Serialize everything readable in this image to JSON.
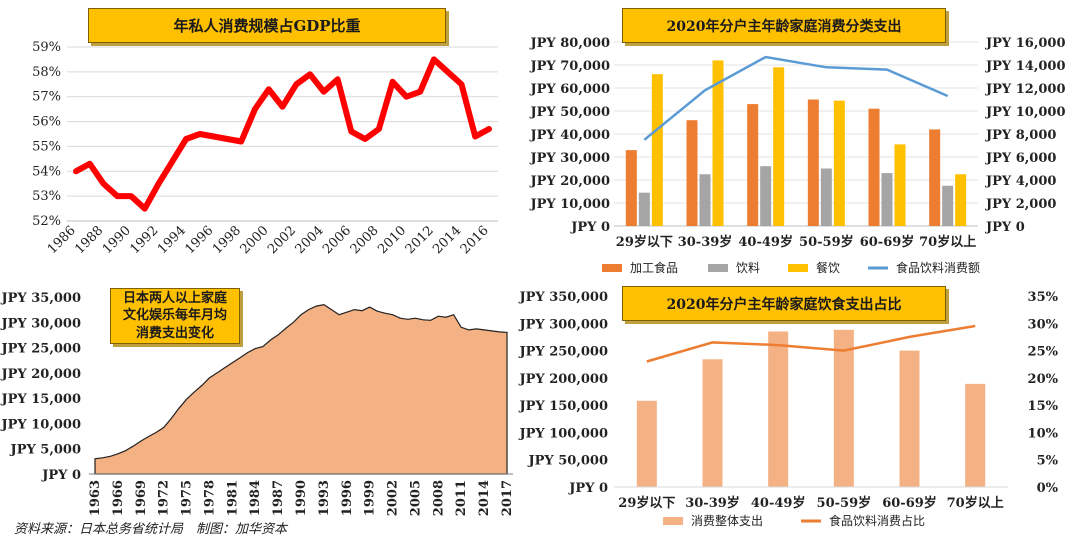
{
  "chart_data": [
    {
      "type": "line",
      "title": "年私人消费规模占GDP比重",
      "x": [
        1986,
        1987,
        1988,
        1989,
        1990,
        1991,
        1992,
        1993,
        1994,
        1995,
        1996,
        1997,
        1998,
        1999,
        2000,
        2001,
        2002,
        2003,
        2004,
        2005,
        2006,
        2007,
        2008,
        2009,
        2010,
        2011,
        2012,
        2013,
        2014,
        2015,
        2016
      ],
      "x_ticks": [
        "1986",
        "1988",
        "1990",
        "1992",
        "1994",
        "1996",
        "1998",
        "2000",
        "2002",
        "2004",
        "2006",
        "2008",
        "2010",
        "2012",
        "2014",
        "2016"
      ],
      "values": [
        54.0,
        54.3,
        53.5,
        53.0,
        53.0,
        52.5,
        53.5,
        54.4,
        55.3,
        55.5,
        55.4,
        55.3,
        55.2,
        56.5,
        57.3,
        56.6,
        57.5,
        57.9,
        57.2,
        57.7,
        55.6,
        55.3,
        55.7,
        57.6,
        57.0,
        57.2,
        58.5,
        58.0,
        57.5,
        55.4,
        55.7
      ],
      "ylim": [
        52,
        59
      ],
      "y_ticks": [
        "52%",
        "53%",
        "54%",
        "55%",
        "56%",
        "57%",
        "58%",
        "59%"
      ],
      "color": "#FF0000"
    },
    {
      "type": "bar",
      "title": "2020年分户主年龄家庭消费分类支出",
      "categories": [
        "29岁以下",
        "30-39岁",
        "40-49岁",
        "50-59岁",
        "60-69岁",
        "70岁以上"
      ],
      "series": [
        {
          "name": "加工食品",
          "values": [
            33000,
            46000,
            53000,
            55000,
            51000,
            42000
          ],
          "color": "#ED7D31",
          "axis": "left"
        },
        {
          "name": "饮料",
          "values": [
            14500,
            22500,
            26000,
            25000,
            23000,
            17500
          ],
          "color": "#A5A5A5",
          "axis": "left"
        },
        {
          "name": "餐饮",
          "values": [
            66000,
            72000,
            69000,
            54500,
            35500,
            22500
          ],
          "color": "#FFC000",
          "axis": "left"
        },
        {
          "name": "食品饮料消费额",
          "type": "line",
          "values": [
            7500,
            11800,
            14700,
            13800,
            13600,
            11300
          ],
          "color": "#5B9BD5",
          "axis": "right"
        }
      ],
      "ylim": [
        0,
        80000
      ],
      "y2lim": [
        0,
        16000
      ],
      "y_ticks": [
        "JPY 0",
        "JPY 10,000",
        "JPY 20,000",
        "JPY 30,000",
        "JPY 40,000",
        "JPY 50,000",
        "JPY 60,000",
        "JPY 70,000",
        "JPY 80,000"
      ],
      "y2_ticks": [
        "JPY 0",
        "JPY 2,000",
        "JPY 4,000",
        "JPY 6,000",
        "JPY 8,000",
        "JPY 10,000",
        "JPY 12,000",
        "JPY 14,000",
        "JPY 16,000"
      ],
      "legend": "bottom"
    },
    {
      "type": "area",
      "title": "日本两人以上家庭文化娱乐每年月均消费支出变化",
      "x": [
        1963,
        1964,
        1965,
        1966,
        1967,
        1968,
        1969,
        1970,
        1971,
        1972,
        1973,
        1974,
        1975,
        1976,
        1977,
        1978,
        1979,
        1980,
        1981,
        1982,
        1983,
        1984,
        1985,
        1986,
        1987,
        1988,
        1989,
        1990,
        1991,
        1992,
        1993,
        1994,
        1995,
        1996,
        1997,
        1998,
        1999,
        2000,
        2001,
        2002,
        2003,
        2004,
        2005,
        2006,
        2007,
        2008,
        2009,
        2010,
        2011,
        2012,
        2013,
        2014,
        2015,
        2016,
        2017
      ],
      "x_ticks": [
        "1963",
        "1966",
        "1969",
        "1972",
        "1975",
        "1978",
        "1981",
        "1984",
        "1987",
        "1990",
        "1993",
        "1996",
        "1999",
        "2002",
        "2005",
        "2008",
        "2011",
        "2014",
        "2017"
      ],
      "values": [
        3000,
        3200,
        3500,
        4000,
        4600,
        5500,
        6500,
        7400,
        8200,
        9200,
        11000,
        13000,
        14800,
        16200,
        17500,
        19000,
        20000,
        21000,
        22000,
        23000,
        24000,
        24800,
        25200,
        26500,
        27500,
        28800,
        30000,
        31500,
        32500,
        33200,
        33500,
        32500,
        31500,
        32000,
        32500,
        32300,
        33000,
        32200,
        31800,
        31500,
        30800,
        30600,
        30800,
        30500,
        30400,
        31200,
        31000,
        31500,
        29000,
        28500,
        28700,
        28500,
        28300,
        28100,
        28000
      ],
      "ylim": [
        0,
        35000
      ],
      "y_ticks": [
        "JPY 0",
        "JPY 5,000",
        "JPY 10,000",
        "JPY 15,000",
        "JPY 20,000",
        "JPY 25,000",
        "JPY 30,000",
        "JPY 35,000"
      ],
      "color": "#F4B183"
    },
    {
      "type": "bar",
      "title": "2020年分户主年龄家庭饮食支出占比",
      "categories": [
        "29岁以下",
        "30-39岁",
        "40-49岁",
        "50-59岁",
        "60-69岁",
        "70岁以上"
      ],
      "series": [
        {
          "name": "消费整体支出",
          "values": [
            158000,
            234000,
            285000,
            288000,
            250000,
            189000
          ],
          "color": "#F4B183",
          "axis": "left"
        },
        {
          "name": "食品饮料消费占比",
          "type": "line",
          "values": [
            23.0,
            26.5,
            26.0,
            25.0,
            27.5,
            29.5
          ],
          "color": "#ED7D31",
          "axis": "right"
        }
      ],
      "ylim": [
        0,
        350000
      ],
      "y2lim": [
        0,
        35
      ],
      "y_ticks": [
        "JPY 0",
        "JPY 50,000",
        "JPY 100,000",
        "JPY 150,000",
        "JPY 200,000",
        "JPY 250,000",
        "JPY 300,000",
        "JPY 350,000"
      ],
      "y2_ticks": [
        "0%",
        "5%",
        "10%",
        "15%",
        "20%",
        "25%",
        "30%",
        "35%"
      ],
      "legend": "bottom"
    }
  ],
  "source": "资料来源：日本总务省统计局　制图：加华资本"
}
